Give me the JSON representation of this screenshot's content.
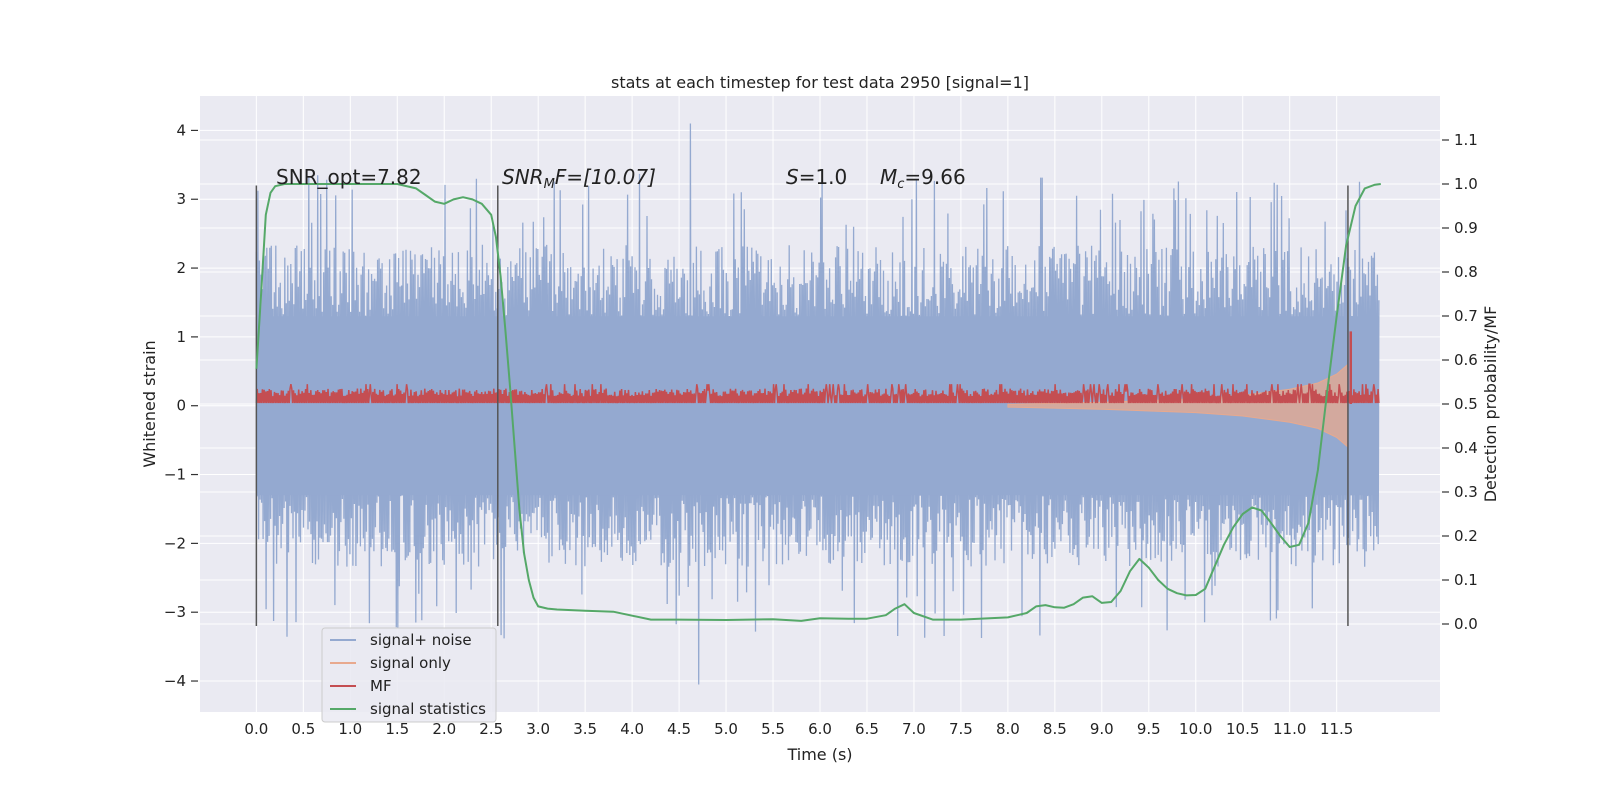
{
  "chart_data": {
    "type": "line",
    "title": "stats at each timestep for test data 2950 [signal=1]",
    "xlabel": "Time (s)",
    "ylabel": "Whitened strain",
    "ylabel_right": "Detection probability/MF",
    "xlim": [
      -0.6,
      12.6
    ],
    "ylim": [
      -4.45,
      4.5
    ],
    "ylim_right": [
      -0.2,
      1.2
    ],
    "xticks": [
      "0.0",
      "0.5",
      "1.0",
      "1.5",
      "2.0",
      "2.5",
      "3.0",
      "3.5",
      "4.0",
      "4.5",
      "5.0",
      "5.5",
      "6.0",
      "6.5",
      "7.0",
      "7.5",
      "8.0",
      "8.5",
      "9.0",
      "9.5",
      "10.0",
      "10.5",
      "11.0",
      "11.5"
    ],
    "yticks": [
      "4",
      "3",
      "2",
      "1",
      "0",
      "−1",
      "−2",
      "−3",
      "−4"
    ],
    "yticks_right": [
      "1.1",
      "1.0",
      "0.9",
      "0.8",
      "0.7",
      "0.6",
      "0.5",
      "0.4",
      "0.3",
      "0.2",
      "0.1",
      "0.0"
    ],
    "grid": true,
    "legend_position": "lower-left",
    "annotations": {
      "snr_opt": "SNR_opt=7.82",
      "snr_mf_var": "SNR",
      "snr_mf_sub": "M",
      "snr_mf_rest": "F=[10.07]",
      "s_var": "S",
      "s_rest": "=1.0",
      "mc_var": "M",
      "mc_sub": "c",
      "mc_rest": "=9.66"
    },
    "vertical_markers_x": [
      0.0,
      2.57,
      11.62
    ],
    "series": [
      {
        "name": "signal+ noise",
        "color": "#94a9d0",
        "axis": "left",
        "envelope": {
          "x_range": [
            0.0,
            11.95
          ],
          "dense_band": [
            -1.3,
            1.3
          ],
          "typical_peak_abs": 2.6,
          "max": 4.1,
          "min": -4.05
        }
      },
      {
        "name": "signal only",
        "color": "#e8a98e",
        "axis": "left",
        "chirp": {
          "x": [
            8.0,
            9.0,
            10.0,
            10.5,
            11.0,
            11.3,
            11.5,
            11.62
          ],
          "amplitude": [
            0.02,
            0.05,
            0.1,
            0.15,
            0.24,
            0.33,
            0.46,
            0.6
          ]
        }
      },
      {
        "name": "MF",
        "color": "#c44e52",
        "axis": "right",
        "band": {
          "x_range": [
            0.0,
            11.95
          ],
          "base": 0.5,
          "typical_top": 0.535,
          "max": 0.545,
          "peak": {
            "x": 11.65,
            "y": 0.665
          }
        }
      },
      {
        "name": "signal statistics",
        "color": "#55a868",
        "axis": "right",
        "x": [
          0.0,
          0.05,
          0.1,
          0.15,
          0.2,
          0.3,
          0.5,
          1.0,
          1.3,
          1.5,
          1.7,
          1.8,
          1.9,
          2.0,
          2.1,
          2.2,
          2.3,
          2.4,
          2.5,
          2.55,
          2.6,
          2.65,
          2.7,
          2.75,
          2.8,
          2.85,
          2.9,
          2.95,
          3.0,
          3.1,
          3.2,
          3.5,
          3.8,
          4.2,
          4.5,
          5.0,
          5.5,
          5.8,
          6.0,
          6.3,
          6.5,
          6.7,
          6.8,
          6.9,
          7.0,
          7.2,
          7.5,
          8.0,
          8.2,
          8.3,
          8.4,
          8.5,
          8.6,
          8.7,
          8.8,
          8.9,
          9.0,
          9.1,
          9.2,
          9.3,
          9.4,
          9.5,
          9.6,
          9.7,
          9.8,
          9.9,
          10.0,
          10.1,
          10.2,
          10.3,
          10.4,
          10.5,
          10.6,
          10.7,
          10.8,
          10.9,
          11.0,
          11.1,
          11.2,
          11.3,
          11.4,
          11.5,
          11.6,
          11.7,
          11.8,
          11.9,
          11.97
        ],
        "y": [
          0.58,
          0.75,
          0.93,
          0.98,
          0.995,
          1.0,
          1.0,
          1.0,
          1.0,
          1.0,
          0.99,
          0.975,
          0.96,
          0.955,
          0.965,
          0.97,
          0.965,
          0.955,
          0.93,
          0.88,
          0.79,
          0.67,
          0.54,
          0.4,
          0.26,
          0.16,
          0.1,
          0.06,
          0.04,
          0.035,
          0.033,
          0.03,
          0.028,
          0.01,
          0.01,
          0.009,
          0.011,
          0.007,
          0.013,
          0.012,
          0.012,
          0.02,
          0.035,
          0.045,
          0.025,
          0.01,
          0.01,
          0.015,
          0.025,
          0.04,
          0.043,
          0.038,
          0.037,
          0.045,
          0.06,
          0.063,
          0.048,
          0.05,
          0.075,
          0.12,
          0.148,
          0.128,
          0.1,
          0.08,
          0.07,
          0.065,
          0.066,
          0.08,
          0.13,
          0.18,
          0.22,
          0.25,
          0.265,
          0.258,
          0.23,
          0.2,
          0.175,
          0.18,
          0.23,
          0.35,
          0.53,
          0.7,
          0.86,
          0.95,
          0.99,
          0.998,
          1.0
        ]
      }
    ]
  }
}
